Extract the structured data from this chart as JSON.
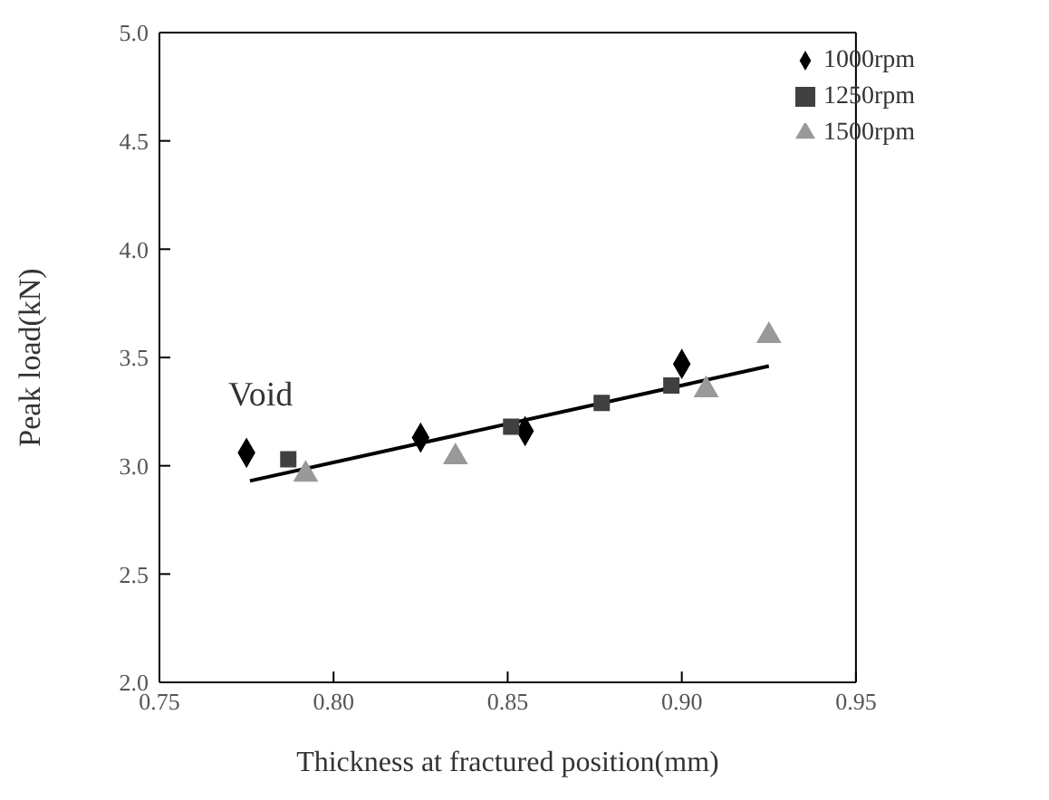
{
  "chart_data": {
    "type": "scatter",
    "xlabel": "Thickness at fractured position(mm)",
    "ylabel": "Peak load(kN)",
    "xlim": [
      0.75,
      0.95
    ],
    "xticks": [
      {
        "value": 0.75,
        "label": "0.75"
      },
      {
        "value": 0.8,
        "label": "0.80"
      },
      {
        "value": 0.85,
        "label": "0.85"
      },
      {
        "value": 0.9,
        "label": "0.90"
      },
      {
        "value": 0.95,
        "label": "0.95"
      }
    ],
    "ylim": [
      2.0,
      5.0
    ],
    "yticks": [
      {
        "value": 2,
        "label": "2.0"
      },
      {
        "value": 2.5,
        "label": "2.5"
      },
      {
        "value": 3,
        "label": "3.0"
      },
      {
        "value": 3.5,
        "label": "3.5"
      },
      {
        "value": 4,
        "label": "4.0"
      },
      {
        "value": 4.5,
        "label": "4.5"
      },
      {
        "value": 5,
        "label": "5.0"
      }
    ],
    "grid": false,
    "legend": "top right",
    "annotations": [
      {
        "text": "Void",
        "x": 0.775,
        "y": 3.06
      }
    ],
    "series": [
      {
        "name": "1000rpm",
        "color": "#000000",
        "marker": "diamond",
        "x": [
          0.775,
          0.825,
          0.855,
          0.9
        ],
        "values": [
          3.06,
          3.13,
          3.16,
          3.47
        ]
      },
      {
        "name": "1250rpm",
        "color": "#404040",
        "marker": "square",
        "x": [
          0.787,
          0.851,
          0.877,
          0.897
        ],
        "values": [
          3.03,
          3.18,
          3.29,
          3.37
        ]
      },
      {
        "name": "1500rpm",
        "color": "#999999",
        "marker": "triangle",
        "x": [
          0.792,
          0.835,
          0.907,
          0.925
        ],
        "values": [
          2.96,
          3.04,
          3.35,
          3.6
        ]
      },
      {
        "type": "line",
        "color": "#000000",
        "marker": "none",
        "line_style": "solid",
        "x": [
          0.776,
          0.925
        ],
        "values": [
          2.93,
          3.46
        ]
      }
    ]
  }
}
